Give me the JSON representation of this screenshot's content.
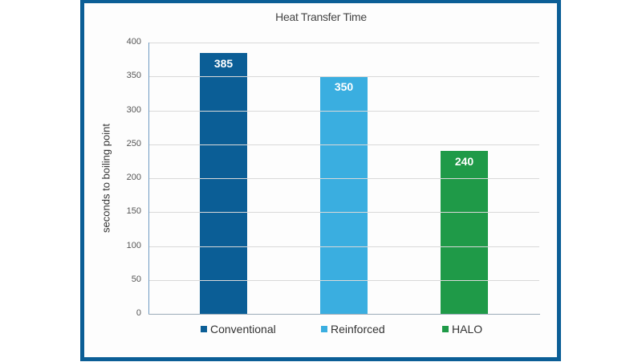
{
  "chart_data": {
    "type": "bar",
    "title": "Heat Transfer Time",
    "xlabel": "",
    "ylabel": "seconds to boiling point",
    "categories": [
      "Conventional",
      "Reinforced",
      "HALO"
    ],
    "values": [
      385,
      350,
      240
    ],
    "colors": [
      "#0b5e96",
      "#3aaee0",
      "#1f9a48"
    ],
    "ylim": [
      0,
      400
    ],
    "yticks": [
      0,
      50,
      100,
      150,
      200,
      250,
      300,
      350,
      400
    ],
    "grid": true,
    "legend_position": "bottom",
    "data_labels": [
      "385",
      "350",
      "240"
    ]
  },
  "frame_color": "#0b5e96",
  "legend": [
    {
      "label": "Conventional",
      "color": "#0b5e96"
    },
    {
      "label": "Reinforced",
      "color": "#3aaee0"
    },
    {
      "label": "HALO",
      "color": "#1f9a48"
    }
  ]
}
